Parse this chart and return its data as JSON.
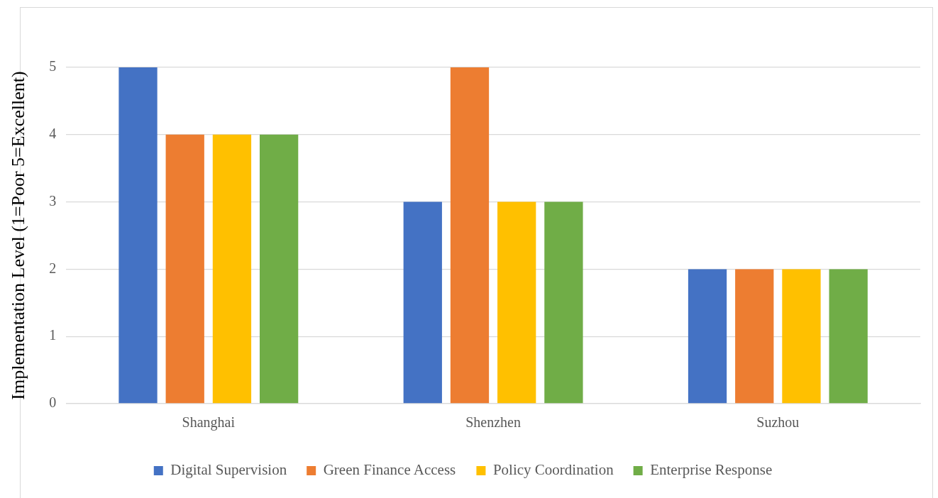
{
  "chart_data": {
    "type": "bar",
    "ylabel": "Implementation Level (1=Poor 5=Excellent)",
    "categories": [
      "Shanghai",
      "Shenzhen",
      "Suzhou"
    ],
    "series": [
      {
        "name": "Digital Supervision",
        "color": "#4472c4",
        "values": [
          5,
          3,
          2
        ]
      },
      {
        "name": "Green Finance Access",
        "color": "#ed7d31",
        "values": [
          4,
          5,
          2
        ]
      },
      {
        "name": "Policy Coordination",
        "color": "#ffc000",
        "values": [
          4,
          3,
          2
        ]
      },
      {
        "name": "Enterprise Response",
        "color": "#70ad47",
        "values": [
          4,
          3,
          2
        ]
      }
    ],
    "ylim": [
      0,
      5
    ],
    "yticks": [
      0,
      1,
      2,
      3,
      4,
      5
    ],
    "grid": "y",
    "legend": "bottom"
  }
}
